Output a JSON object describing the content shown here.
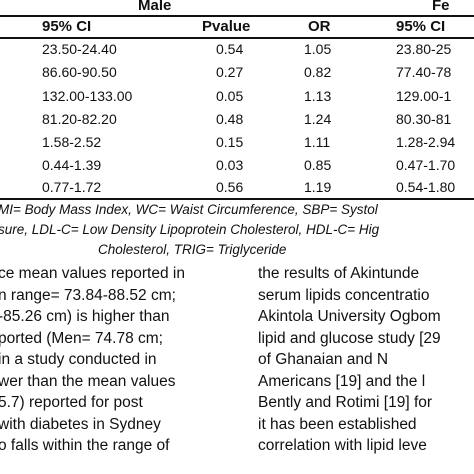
{
  "table": {
    "groups": [
      "Male",
      "Fe"
    ],
    "headers": [
      "95% CI",
      "Pvalue",
      "OR",
      "95% CI"
    ],
    "rows": [
      [
        "23.50-24.40",
        "0.54",
        "1.05",
        "23.80-25"
      ],
      [
        "86.60-90.50",
        "0.27",
        "0.82",
        "77.40-78"
      ],
      [
        "132.00-133.00",
        "0.05",
        "1.13",
        "129.00-1"
      ],
      [
        "81.20-82.20",
        "0.48",
        "1.24",
        "80.30-81"
      ],
      [
        "1.58-2.52",
        "0.15",
        "1.11",
        "1.28-2.94"
      ],
      [
        "0.44-1.39",
        "0.03",
        "0.85",
        "0.47-1.70"
      ],
      [
        "0.77-1.72",
        "0.56",
        "1.19",
        "0.54-1.80"
      ]
    ],
    "footnote_lines": [
      "MI= Body Mass Index, WC= Waist Circumference, SBP= Systol",
      "sure, LDL-C= Low Density Lipoprotein Cholesterol, HDL-C= Hig",
      "Cholesterol, TRIG= Triglyceride"
    ]
  },
  "body_text": {
    "left_column": [
      "ce mean values reported in",
      "n range= 73.84-88.52 cm;",
      "-85.26 cm) is higher than",
      "ported (Men= 74.78 cm;",
      "in a study conducted in",
      "wer than the mean values",
      "5.7)  reported  for  post",
      "with diabetes in Sydney",
      "o falls within the range of"
    ],
    "right_column": [
      "the results of Akintunde",
      "serum lipids concentratio",
      "Akintola University Ogbom",
      "lipid and glucose study [29",
      "of    Ghanaian    and    N",
      "Americans [19] and the l",
      "Bently and Rotimi [19] for",
      "it has been established",
      "correlation with lipid leve"
    ]
  }
}
